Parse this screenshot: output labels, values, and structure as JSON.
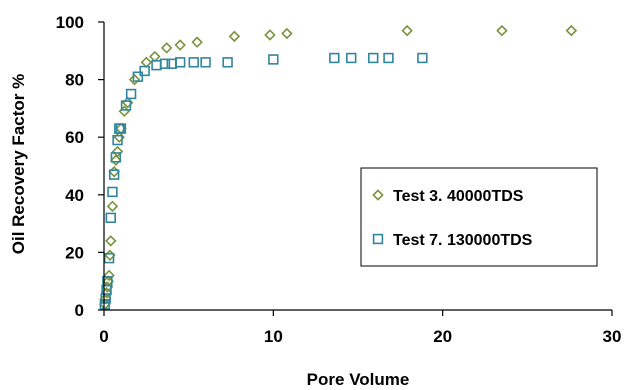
{
  "chart_data": {
    "type": "scatter",
    "xlabel": "Pore Volume",
    "ylabel": "Oil Recovery Factor %",
    "xlim": [
      0,
      30
    ],
    "ylim": [
      0,
      100
    ],
    "xticks": [
      0,
      10,
      20,
      30
    ],
    "yticks": [
      0,
      20,
      40,
      60,
      80,
      100
    ],
    "grid": false,
    "legend_position": "right",
    "series": [
      {
        "name": "Test 3. 40000TDS",
        "marker": "diamond",
        "color": "#77933C",
        "x": [
          0.05,
          0.1,
          0.15,
          0.2,
          0.25,
          0.3,
          0.35,
          0.4,
          0.5,
          0.6,
          0.7,
          0.8,
          0.9,
          1.0,
          1.2,
          1.4,
          1.8,
          2.5,
          3.0,
          3.7,
          4.5,
          5.5,
          7.7,
          9.8,
          10.8,
          17.9,
          23.5,
          27.6
        ],
        "y": [
          2,
          4,
          6,
          8,
          10,
          12,
          19,
          24,
          36,
          48,
          52,
          55,
          60,
          63,
          69,
          72,
          80,
          86,
          88,
          91,
          92,
          93,
          95,
          95.5,
          96,
          97,
          97,
          97
        ]
      },
      {
        "name": "Test 7. 130000TDS",
        "marker": "square",
        "color": "#31859C",
        "x": [
          0.05,
          0.1,
          0.15,
          0.2,
          0.3,
          0.4,
          0.5,
          0.6,
          0.7,
          0.8,
          0.9,
          1.0,
          1.3,
          1.6,
          2.0,
          2.4,
          3.1,
          3.6,
          4.0,
          4.5,
          5.3,
          6.0,
          7.3,
          10.0,
          13.6,
          14.6,
          15.9,
          16.8,
          18.8
        ],
        "y": [
          2,
          4,
          7,
          10,
          18,
          32,
          41,
          47,
          53,
          59,
          63,
          63,
          71,
          75,
          81,
          83,
          85,
          85.5,
          85.5,
          86,
          86,
          86,
          86,
          87,
          87.5,
          87.5,
          87.5,
          87.5,
          87.5
        ]
      }
    ]
  }
}
